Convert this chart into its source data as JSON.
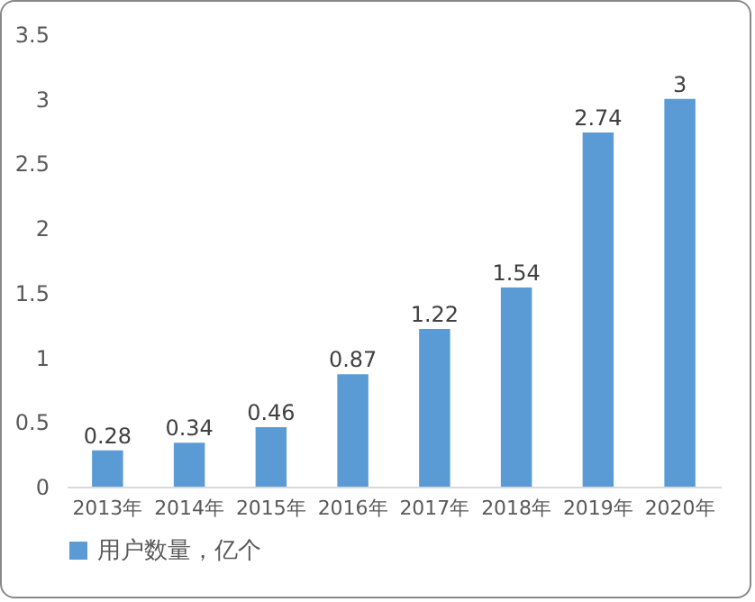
{
  "chart_data": {
    "type": "bar",
    "categories": [
      "2013年",
      "2014年",
      "2015年",
      "2016年",
      "2017年",
      "2018年",
      "2019年",
      "2020年"
    ],
    "series": [
      {
        "name": "用户数量，亿个",
        "color": "#5b9bd5",
        "values": [
          0.28,
          0.34,
          0.46,
          0.87,
          1.22,
          1.54,
          2.74,
          3
        ]
      }
    ],
    "ylim": [
      0,
      3.5
    ],
    "yticks": [
      0,
      0.5,
      1,
      1.5,
      2,
      2.5,
      3,
      3.5
    ],
    "grid": false,
    "legend": "bottom",
    "data_labels": true
  }
}
